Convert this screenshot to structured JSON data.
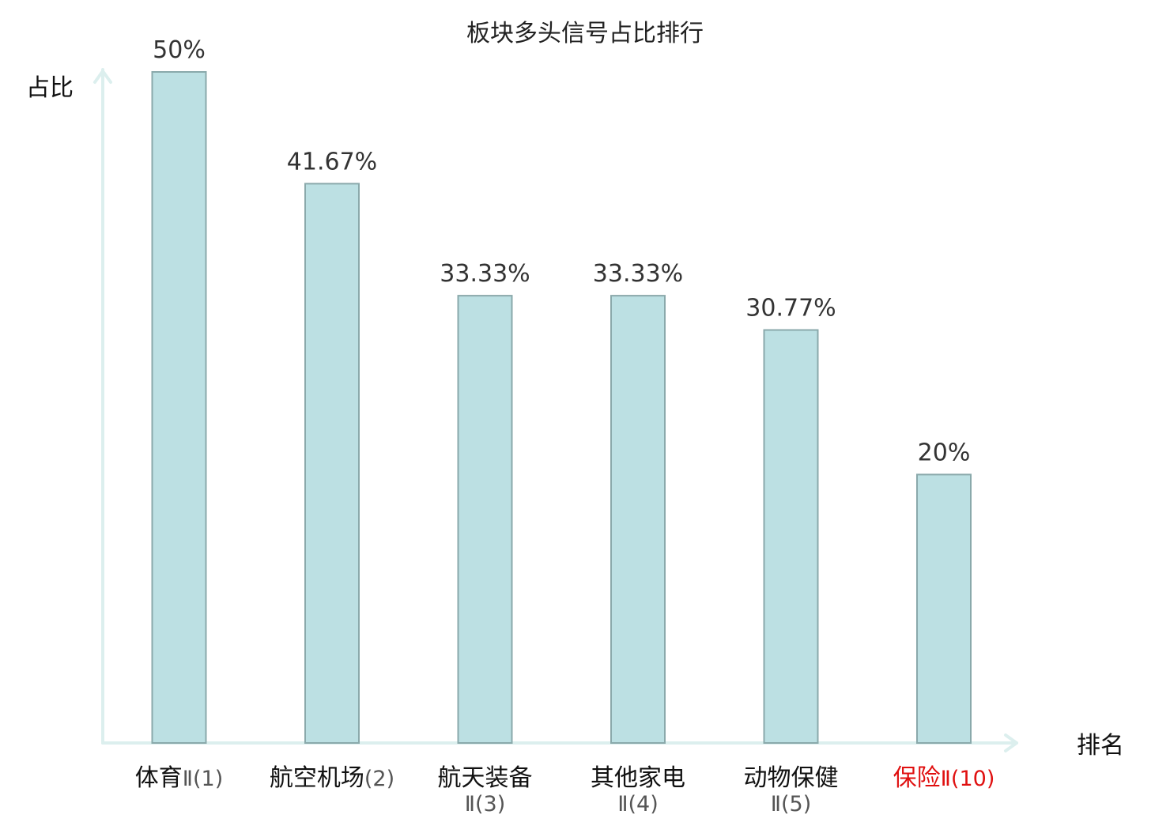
{
  "chart_data": {
    "type": "bar",
    "title": "板块多头信号占比排行",
    "ylabel": "占比",
    "xlabel": "排名",
    "ylim": [
      0,
      50
    ],
    "value_suffix": "%",
    "categories": [
      {
        "name": "体育",
        "rank": "Ⅱ(1)",
        "highlight": false
      },
      {
        "name": "航空机场",
        "rank": "(2)",
        "highlight": false
      },
      {
        "name": "航天装备",
        "rank": "Ⅱ(3)",
        "highlight": false
      },
      {
        "name": "其他家电",
        "rank": "Ⅱ(4)",
        "highlight": false
      },
      {
        "name": "动物保健",
        "rank": "Ⅱ(5)",
        "highlight": false
      },
      {
        "name": "保险",
        "rank": "Ⅱ(10)",
        "highlight": true
      }
    ],
    "values": [
      50,
      41.67,
      33.33,
      33.33,
      30.77,
      20
    ],
    "grid": false,
    "legend": "none"
  },
  "colors": {
    "bar_fill": "#bce0e3",
    "bar_stroke": "#8aa9ab",
    "axis": "#dcefee",
    "highlight": "#e01010",
    "rank_normal": "#555555",
    "category_normal": "#111111"
  }
}
